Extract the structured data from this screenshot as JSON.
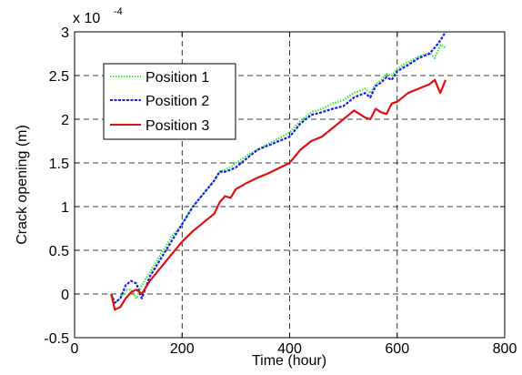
{
  "chart_data": {
    "type": "line",
    "title": "",
    "xlabel": "Time (hour)",
    "ylabel": "Crack opening (m)",
    "y_multiplier_label": "x 10",
    "y_multiplier_exponent": "-4",
    "xlim": [
      0,
      800
    ],
    "ylim": [
      -0.5,
      3
    ],
    "x_ticks": [
      0,
      200,
      400,
      600,
      800
    ],
    "x_tick_labels": [
      "0",
      "200",
      "400",
      "600",
      "800"
    ],
    "y_ticks": [
      -0.5,
      0,
      0.5,
      1,
      1.5,
      2,
      2.5,
      3
    ],
    "y_tick_labels": [
      "-0.5",
      "0",
      "0.5",
      "1",
      "1.5",
      "2",
      "2.5",
      "3"
    ],
    "grid": true,
    "legend_position": "top-left",
    "series": [
      {
        "name": "Position 1",
        "color": "#33ee33",
        "style": "dotted",
        "x": [
          68,
          75,
          85,
          95,
          105,
          115,
          125,
          140,
          160,
          180,
          200,
          220,
          240,
          260,
          270,
          280,
          290,
          300,
          320,
          340,
          360,
          380,
          400,
          420,
          440,
          460,
          480,
          500,
          520,
          540,
          550,
          560,
          570,
          580,
          590,
          600,
          620,
          640,
          660,
          670,
          680,
          690
        ],
        "y": [
          0,
          -0.1,
          -0.05,
          0.05,
          0.05,
          -0.05,
          0.1,
          0.25,
          0.45,
          0.65,
          0.8,
          1.0,
          1.15,
          1.3,
          1.4,
          1.42,
          1.45,
          1.5,
          1.58,
          1.65,
          1.72,
          1.78,
          1.85,
          1.98,
          2.08,
          2.12,
          2.18,
          2.22,
          2.3,
          2.35,
          2.3,
          2.4,
          2.45,
          2.52,
          2.5,
          2.58,
          2.65,
          2.72,
          2.76,
          2.7,
          2.85,
          2.82
        ]
      },
      {
        "name": "Position 2",
        "color": "#1a1aee",
        "style": "dashed",
        "x": [
          68,
          75,
          85,
          95,
          105,
          115,
          125,
          140,
          160,
          180,
          200,
          220,
          240,
          260,
          270,
          280,
          290,
          300,
          320,
          340,
          360,
          380,
          400,
          420,
          440,
          460,
          480,
          500,
          520,
          540,
          550,
          560,
          570,
          580,
          590,
          600,
          620,
          640,
          660,
          670,
          680,
          690
        ],
        "y": [
          0,
          -0.1,
          -0.05,
          0.1,
          0.15,
          0.12,
          -0.05,
          0.2,
          0.4,
          0.6,
          0.8,
          1.0,
          1.15,
          1.3,
          1.4,
          1.4,
          1.42,
          1.45,
          1.55,
          1.65,
          1.7,
          1.75,
          1.8,
          1.95,
          2.05,
          2.08,
          2.12,
          2.15,
          2.25,
          2.3,
          2.25,
          2.38,
          2.42,
          2.48,
          2.45,
          2.55,
          2.62,
          2.7,
          2.75,
          2.82,
          2.9,
          3.0
        ]
      },
      {
        "name": "Position 3",
        "color": "#dd1111",
        "style": "solid",
        "x": [
          68,
          75,
          85,
          95,
          105,
          115,
          125,
          140,
          160,
          180,
          200,
          220,
          240,
          260,
          270,
          280,
          290,
          300,
          320,
          340,
          360,
          380,
          400,
          420,
          440,
          460,
          480,
          500,
          520,
          540,
          550,
          560,
          570,
          580,
          590,
          600,
          620,
          640,
          660,
          670,
          680,
          690
        ],
        "y": [
          0,
          -0.18,
          -0.15,
          -0.05,
          0.02,
          0.05,
          0.0,
          0.15,
          0.3,
          0.45,
          0.6,
          0.72,
          0.82,
          0.92,
          1.05,
          1.12,
          1.1,
          1.2,
          1.27,
          1.33,
          1.38,
          1.44,
          1.5,
          1.65,
          1.75,
          1.8,
          1.9,
          2.0,
          2.1,
          2.02,
          2.0,
          2.12,
          2.08,
          2.06,
          2.18,
          2.2,
          2.3,
          2.35,
          2.4,
          2.45,
          2.3,
          2.45
        ]
      }
    ]
  }
}
